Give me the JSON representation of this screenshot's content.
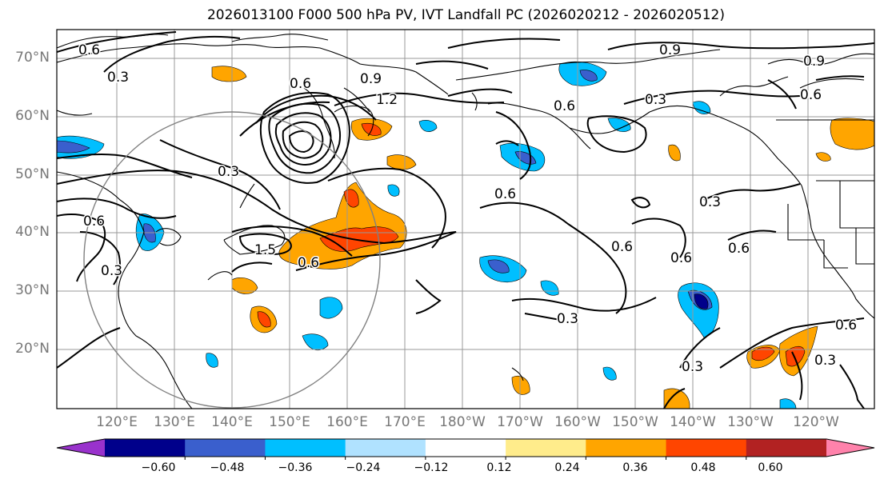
{
  "title": "2026013100 F000 500 hPa PV, IVT Landfall PC (2026020212 - 2026020512)",
  "lat_labels": [
    "70°N",
    "60°N",
    "50°N",
    "40°N",
    "30°N",
    "20°N"
  ],
  "lon_labels": [
    "120°E",
    "130°E",
    "140°E",
    "150°E",
    "160°E",
    "170°E",
    "180°W",
    "170°W",
    "160°W",
    "150°W",
    "140°W",
    "130°W",
    "120°W"
  ],
  "contour_labels": [
    "0.6",
    "0.3",
    "0.6",
    "0.9",
    "1.2",
    "0.9",
    "0.3",
    "0.9",
    "0.6",
    "0.6",
    "0.3",
    "0.6",
    "0.6",
    "0.3",
    "0.3",
    "1.5",
    "0.6",
    "0.6",
    "0.6",
    "0.3",
    "0.3",
    "0.6",
    "0.6",
    "0.3"
  ],
  "colorbar": {
    "ticks": [
      "−0.60",
      "−0.48",
      "−0.36",
      "−0.24",
      "−0.12",
      "0.12",
      "0.24",
      "0.36",
      "0.48",
      "0.60"
    ],
    "colors": [
      "#9932CC",
      "#00008B",
      "#3A5FCD",
      "#00BFFF",
      "#B0E2FF",
      "#FFFFFF",
      "#FFEC8B",
      "#FFA500",
      "#FF4500",
      "#B22222",
      "#FF82AB"
    ]
  },
  "colors": {
    "land_line": "#000000",
    "grid": "#999999",
    "circle": "#808080"
  }
}
